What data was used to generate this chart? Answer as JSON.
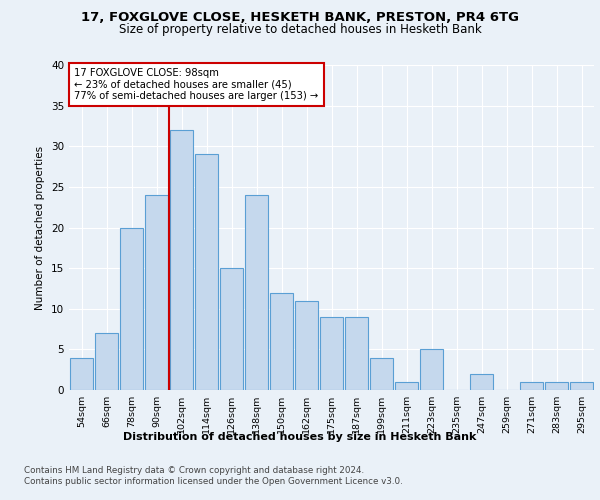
{
  "title1": "17, FOXGLOVE CLOSE, HESKETH BANK, PRESTON, PR4 6TG",
  "title2": "Size of property relative to detached houses in Hesketh Bank",
  "xlabel": "Distribution of detached houses by size in Hesketh Bank",
  "ylabel": "Number of detached properties",
  "categories": [
    "54sqm",
    "66sqm",
    "78sqm",
    "90sqm",
    "102sqm",
    "114sqm",
    "126sqm",
    "138sqm",
    "150sqm",
    "162sqm",
    "175sqm",
    "187sqm",
    "199sqm",
    "211sqm",
    "223sqm",
    "235sqm",
    "247sqm",
    "259sqm",
    "271sqm",
    "283sqm",
    "295sqm"
  ],
  "values": [
    4,
    7,
    20,
    24,
    32,
    29,
    15,
    24,
    12,
    11,
    9,
    9,
    4,
    1,
    5,
    0,
    2,
    0,
    1,
    1,
    1
  ],
  "bar_color": "#c5d8ed",
  "bar_edge_color": "#5a9fd4",
  "vline_color": "#cc0000",
  "box_color": "#cc0000",
  "property_line_label": "17 FOXGLOVE CLOSE: 98sqm",
  "annotation_line1": "← 23% of detached houses are smaller (45)",
  "annotation_line2": "77% of semi-detached houses are larger (153) →",
  "ylim": [
    0,
    40
  ],
  "yticks": [
    0,
    5,
    10,
    15,
    20,
    25,
    30,
    35,
    40
  ],
  "footnote1": "Contains HM Land Registry data © Crown copyright and database right 2024.",
  "footnote2": "Contains public sector information licensed under the Open Government Licence v3.0.",
  "bg_color": "#eaf1f8",
  "plot_bg_color": "#eaf1f8"
}
